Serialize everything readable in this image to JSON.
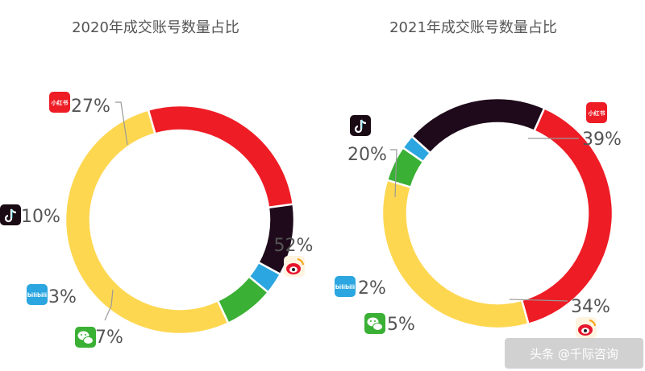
{
  "colors": {
    "xiaohongshu": "#ee1c25",
    "douyin": "#1e0a1a",
    "bilibili": "#2ba6e0",
    "wechat": "#3ab035",
    "weibo": "#fed751",
    "leader": "#999999",
    "title": "#555555"
  },
  "icons": {
    "xiaohongshu": {
      "name": "xiaohongshu-logo-icon",
      "text": "小红书"
    },
    "douyin": {
      "name": "douyin-logo-icon"
    },
    "bilibili": {
      "name": "bilibili-logo-icon",
      "text": "bilibili"
    },
    "wechat": {
      "name": "wechat-logo-icon"
    },
    "weibo": {
      "name": "weibo-logo-icon"
    }
  },
  "footer": {
    "text": "头条 @千际咨询"
  },
  "chart_data": [
    {
      "type": "pie",
      "title": "2020年成交账号数量占比",
      "slices": [
        {
          "key": "xiaohongshu",
          "value": 27,
          "label": "27%"
        },
        {
          "key": "douyin",
          "value": 10,
          "label": "10%"
        },
        {
          "key": "bilibili",
          "value": 3,
          "label": "3%"
        },
        {
          "key": "wechat",
          "value": 7,
          "label": "7%"
        },
        {
          "key": "weibo",
          "value": 52,
          "label": "52%"
        }
      ]
    },
    {
      "type": "pie",
      "title": "2021年成交账号数量占比",
      "slices": [
        {
          "key": "xiaohongshu",
          "value": 39,
          "label": "39%"
        },
        {
          "key": "weibo",
          "value": 34,
          "label": "34%"
        },
        {
          "key": "wechat",
          "value": 5,
          "label": "5%"
        },
        {
          "key": "bilibili",
          "value": 2,
          "label": "2%"
        },
        {
          "key": "douyin",
          "value": 20,
          "label": "20%"
        }
      ]
    }
  ]
}
